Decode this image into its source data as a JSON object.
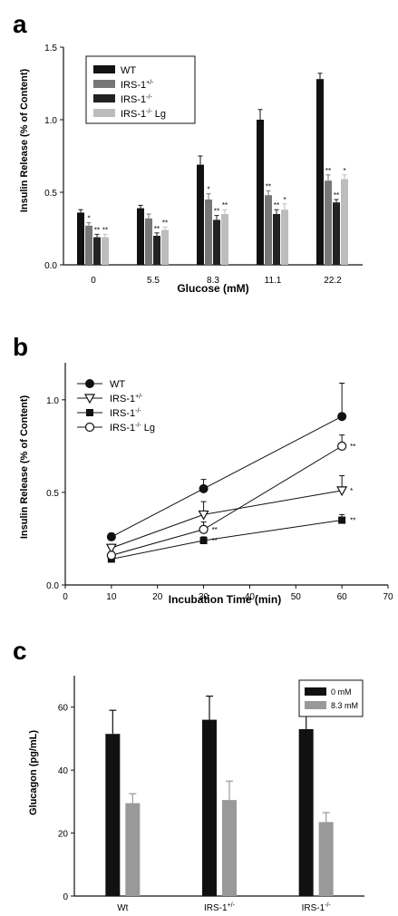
{
  "chart_data": [
    {
      "panel_label": "a",
      "type": "bar",
      "title": "",
      "xlabel": "Glucose (mM)",
      "ylabel": "Insulin Release (% of Content)",
      "ylim": [
        0,
        1.5
      ],
      "yticks": [
        "0.0",
        "0.5",
        "1.0",
        "1.5"
      ],
      "categories": [
        "0",
        "5.5",
        "8.3",
        "11.1",
        "22.2"
      ],
      "legend_position": "top-left",
      "series": [
        {
          "name": "WT",
          "color": "#111111",
          "values": [
            0.36,
            0.39,
            0.69,
            1.0,
            1.28
          ],
          "errors": [
            0.02,
            0.02,
            0.06,
            0.07,
            0.04
          ],
          "marks": [
            "",
            "",
            "",
            "",
            ""
          ]
        },
        {
          "name": "IRS-1+/-",
          "color": "#777777",
          "values": [
            0.27,
            0.32,
            0.45,
            0.48,
            0.58
          ],
          "errors": [
            0.02,
            0.03,
            0.04,
            0.03,
            0.04
          ],
          "marks": [
            "*",
            "",
            "*",
            "**",
            "**"
          ]
        },
        {
          "name": "IRS-1-/-",
          "color": "#222222",
          "values": [
            0.19,
            0.2,
            0.31,
            0.35,
            0.43
          ],
          "errors": [
            0.02,
            0.02,
            0.03,
            0.03,
            0.02
          ],
          "marks": [
            "**",
            "**",
            "**",
            "**",
            "**"
          ]
        },
        {
          "name": "IRS-1-/- Lg",
          "color": "#bdbdbd",
          "values": [
            0.19,
            0.24,
            0.35,
            0.38,
            0.59
          ],
          "errors": [
            0.02,
            0.02,
            0.03,
            0.04,
            0.03
          ],
          "marks": [
            "**",
            "**",
            "**",
            "*",
            "*"
          ]
        }
      ]
    },
    {
      "panel_label": "b",
      "type": "line",
      "title": "",
      "xlabel": "Incubation Time (min)",
      "ylabel": "Insulin Release (% of Content)",
      "xlim": [
        0,
        70
      ],
      "ylim": [
        0,
        1.2
      ],
      "xticks": [
        "0",
        "10",
        "20",
        "30",
        "40",
        "50",
        "60",
        "70"
      ],
      "yticks": [
        "0.0",
        "0.5",
        "1.0"
      ],
      "legend_position": "top-left",
      "x": [
        10,
        30,
        60
      ],
      "series": [
        {
          "name": "WT",
          "marker": "circle-filled",
          "values": [
            0.26,
            0.52,
            0.91
          ],
          "errors": [
            0.02,
            0.05,
            0.18
          ],
          "marks": [
            "",
            "",
            ""
          ]
        },
        {
          "name": "IRS-1+/-",
          "marker": "triangle-open",
          "values": [
            0.2,
            0.38,
            0.51
          ],
          "errors": [
            0.02,
            0.07,
            0.08
          ],
          "marks": [
            "",
            "",
            "*"
          ]
        },
        {
          "name": "IRS-1-/-",
          "marker": "square-filled",
          "values": [
            0.14,
            0.24,
            0.35
          ],
          "errors": [
            0.02,
            0.02,
            0.03
          ],
          "marks": [
            "",
            "**",
            "**"
          ]
        },
        {
          "name": "IRS-1-/- Lg",
          "marker": "circle-open",
          "values": [
            0.16,
            0.3,
            0.75
          ],
          "errors": [
            0.02,
            0.04,
            0.06
          ],
          "marks": [
            "",
            "**",
            "**"
          ]
        }
      ]
    },
    {
      "panel_label": "c",
      "type": "bar",
      "title": "",
      "xlabel": "",
      "ylabel": "Glucagon (pg/mL)",
      "ylim": [
        0,
        70
      ],
      "yticks": [
        "0",
        "20",
        "40",
        "60"
      ],
      "categories": [
        "Wt",
        "IRS-1+/-",
        "IRS-1-/-"
      ],
      "legend_position": "top-right",
      "series": [
        {
          "name": "0 mM",
          "color": "#111111",
          "values": [
            51.5,
            56,
            53
          ],
          "errors": [
            7.5,
            7.5,
            5
          ]
        },
        {
          "name": "8.3 mM",
          "color": "#999999",
          "values": [
            29.5,
            30.5,
            23.5
          ],
          "errors": [
            3,
            6,
            3
          ]
        }
      ]
    }
  ]
}
